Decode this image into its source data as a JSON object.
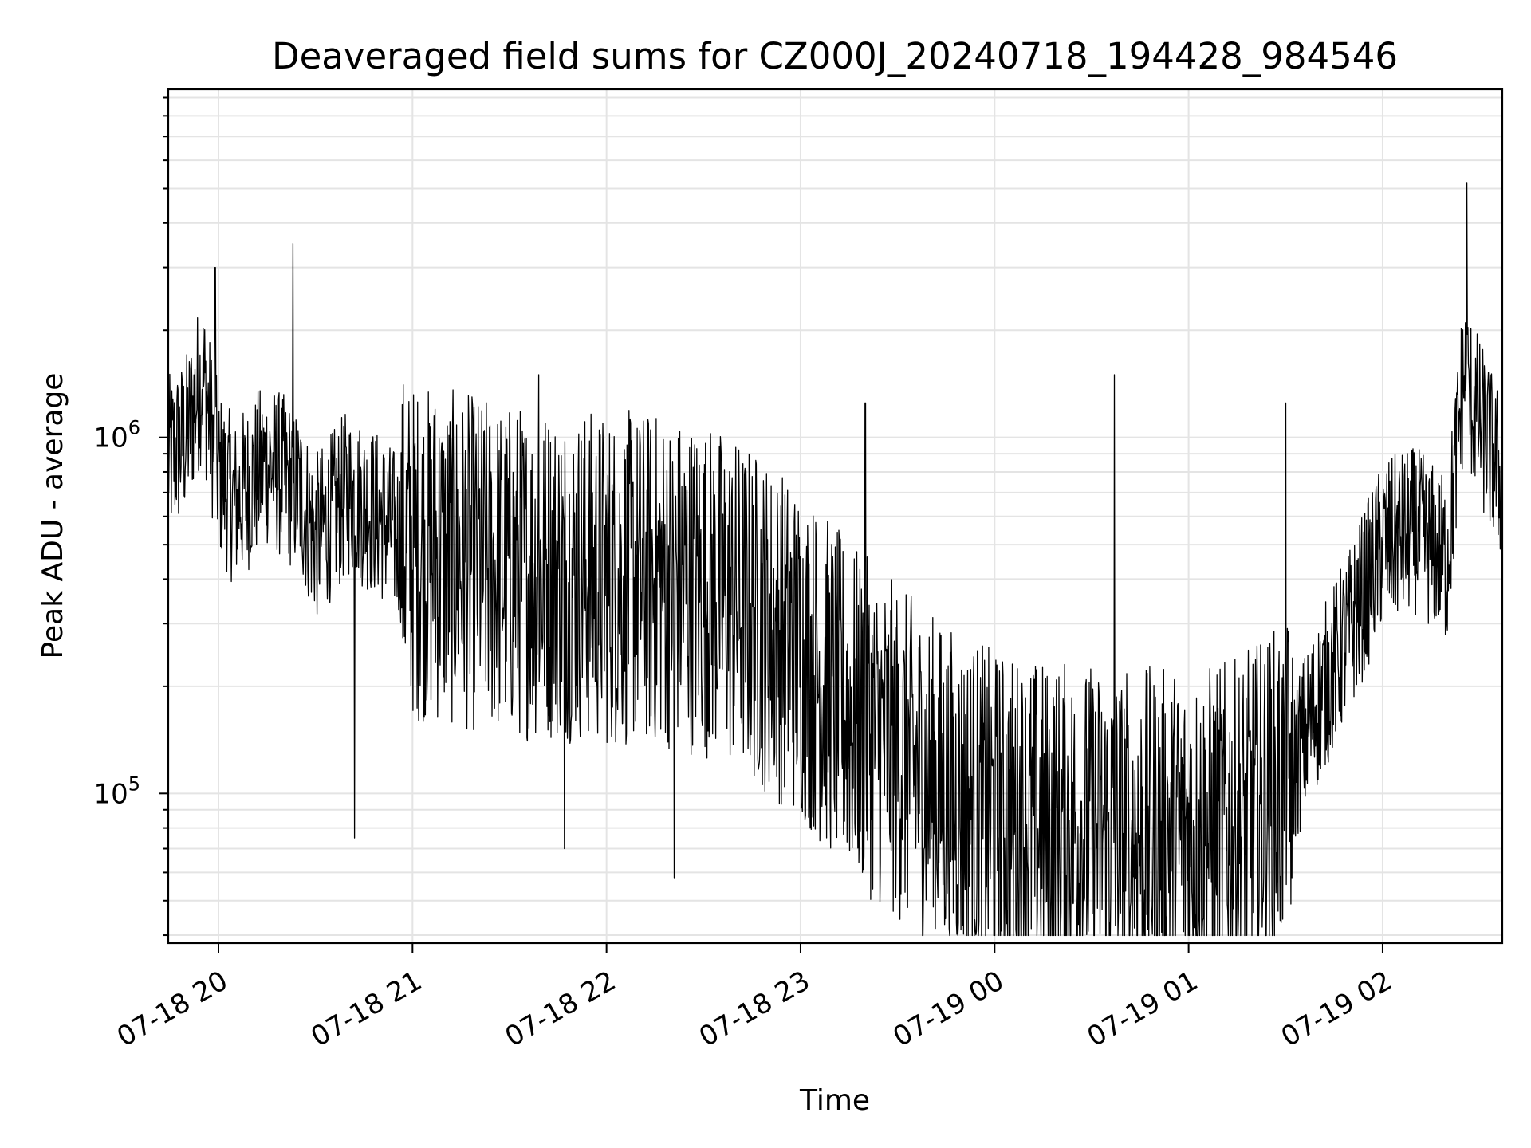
{
  "chart_data": {
    "type": "line",
    "title": "Deaveraged field sums for CZ000J_20240718_194428_984546",
    "xlabel": "Time",
    "ylabel": "Peak ADU - average",
    "x_axis": {
      "type": "time",
      "range": [
        "2024-07-18 19:44:28",
        "2024-07-19 02:37:00"
      ],
      "ticks": [
        {
          "value": "2024-07-18 20:00",
          "label": "07-18 20"
        },
        {
          "value": "2024-07-18 21:00",
          "label": "07-18 21"
        },
        {
          "value": "2024-07-18 22:00",
          "label": "07-18 22"
        },
        {
          "value": "2024-07-18 23:00",
          "label": "07-18 23"
        },
        {
          "value": "2024-07-19 00:00",
          "label": "07-19 00"
        },
        {
          "value": "2024-07-19 01:00",
          "label": "07-19 01"
        },
        {
          "value": "2024-07-19 02:00",
          "label": "07-19 02"
        }
      ]
    },
    "y_axis": {
      "scale": "log",
      "range": [
        38000,
        9500000
      ],
      "ticks": [
        {
          "value": 100000,
          "base": "10",
          "exp": "5"
        },
        {
          "value": 1000000,
          "base": "10",
          "exp": "6"
        }
      ]
    },
    "grid": true,
    "legend": "none",
    "color": "#000000",
    "series": [
      {
        "points": [
          [
            "2024-07-18 19:44",
            850000
          ],
          [
            "2024-07-18 19:50",
            1000000
          ],
          [
            "2024-07-18 19:55",
            1500000
          ],
          [
            "2024-07-18 20:00",
            800000
          ],
          [
            "2024-07-18 20:05",
            650000
          ],
          [
            "2024-07-18 20:15",
            850000
          ],
          [
            "2024-07-18 20:25",
            700000
          ],
          [
            "2024-07-18 20:30",
            520000
          ],
          [
            "2024-07-18 20:40",
            700000
          ],
          [
            "2024-07-18 20:50",
            600000
          ],
          [
            "2024-07-18 21:00",
            480000
          ],
          [
            "2024-07-18 21:15",
            450000
          ],
          [
            "2024-07-18 21:30",
            420000
          ],
          [
            "2024-07-18 21:45",
            420000
          ],
          [
            "2024-07-18 22:00",
            400000
          ],
          [
            "2024-07-18 22:15",
            400000
          ],
          [
            "2024-07-18 22:30",
            380000
          ],
          [
            "2024-07-18 22:45",
            320000
          ],
          [
            "2024-07-18 23:00",
            250000
          ],
          [
            "2024-07-18 23:15",
            170000
          ],
          [
            "2024-07-18 23:30",
            130000
          ],
          [
            "2024-07-18 23:45",
            100000
          ],
          [
            "2024-07-19 00:00",
            85000
          ],
          [
            "2024-07-19 00:15",
            80000
          ],
          [
            "2024-07-19 00:30",
            78000
          ],
          [
            "2024-07-19 00:45",
            76000
          ],
          [
            "2024-07-19 01:00",
            76000
          ],
          [
            "2024-07-19 01:15",
            80000
          ],
          [
            "2024-07-19 01:30",
            105000
          ],
          [
            "2024-07-19 01:40",
            180000
          ],
          [
            "2024-07-19 01:50",
            290000
          ],
          [
            "2024-07-19 02:00",
            500000
          ],
          [
            "2024-07-19 02:10",
            550000
          ],
          [
            "2024-07-19 02:20",
            450000
          ],
          [
            "2024-07-19 02:25",
            1500000
          ],
          [
            "2024-07-19 02:30",
            1100000
          ],
          [
            "2024-07-19 02:37",
            750000
          ]
        ],
        "spikes": [
          [
            "2024-07-18 19:59",
            3000000
          ],
          [
            "2024-07-18 20:23",
            3500000
          ],
          [
            "2024-07-18 21:07",
            1200000
          ],
          [
            "2024-07-18 21:39",
            1500000
          ],
          [
            "2024-07-18 23:20",
            1250000
          ],
          [
            "2024-07-19 00:37",
            1500000
          ],
          [
            "2024-07-19 01:30",
            1250000
          ],
          [
            "2024-07-19 02:26",
            5200000
          ],
          [
            "2024-07-18 20:42",
            75000
          ],
          [
            "2024-07-18 21:47",
            70000
          ],
          [
            "2024-07-18 22:21",
            58000
          ],
          [
            "2024-07-18 23:41",
            48000
          ],
          [
            "2024-07-19 00:24",
            49000
          ],
          [
            "2024-07-19 00:42",
            48000
          ],
          [
            "2024-07-19 01:32",
            58000
          ]
        ]
      }
    ]
  }
}
